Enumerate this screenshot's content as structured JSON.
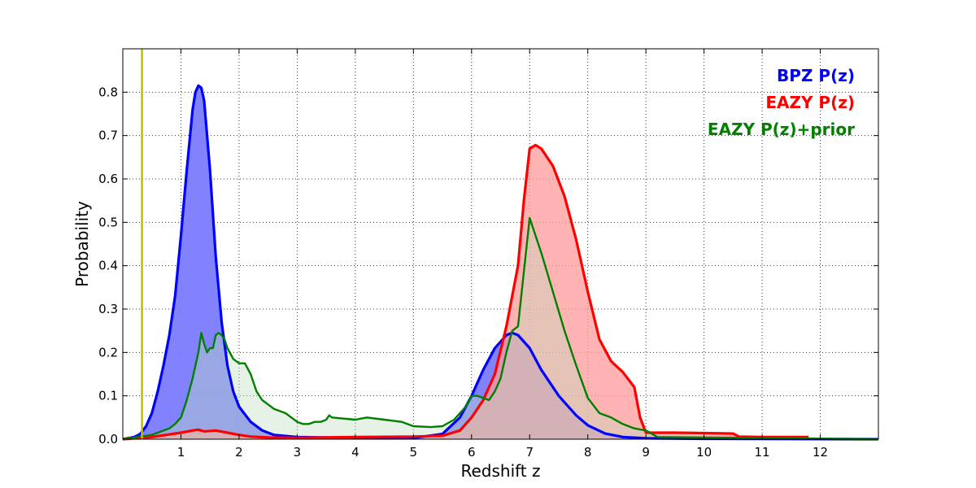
{
  "chart_data": {
    "type": "area",
    "xlabel": "Redshift z",
    "ylabel": "Probability",
    "xlim": [
      0,
      13
    ],
    "ylim": [
      0,
      0.9
    ],
    "x_ticks": [
      1,
      2,
      3,
      4,
      5,
      6,
      7,
      8,
      9,
      10,
      11,
      12
    ],
    "y_ticks": [
      0.0,
      0.1,
      0.2,
      0.3,
      0.4,
      0.5,
      0.6,
      0.7,
      0.8
    ],
    "y_tick_labels": [
      "0.0",
      "0.1",
      "0.2",
      "0.3",
      "0.4",
      "0.5",
      "0.6",
      "0.7",
      "0.8"
    ],
    "grid": true,
    "legend_position": "top-right",
    "vertical_line": {
      "x": 0.33,
      "color": "#bfbf00"
    },
    "series": [
      {
        "name": "BPZ P(z)",
        "color": "#0000ff",
        "fill": "#7b7bff",
        "x": [
          0,
          0.2,
          0.3,
          0.4,
          0.5,
          0.6,
          0.7,
          0.8,
          0.9,
          1.0,
          1.1,
          1.2,
          1.25,
          1.3,
          1.35,
          1.4,
          1.5,
          1.6,
          1.7,
          1.8,
          1.9,
          2.0,
          2.2,
          2.4,
          2.6,
          3.0,
          4.0,
          5.0,
          5.5,
          5.8,
          6.0,
          6.2,
          6.4,
          6.6,
          6.7,
          6.8,
          7.0,
          7.2,
          7.5,
          7.8,
          8.0,
          8.3,
          8.6,
          9.0,
          10.0,
          13.0
        ],
        "y": [
          0,
          0.005,
          0.012,
          0.03,
          0.06,
          0.11,
          0.17,
          0.24,
          0.33,
          0.47,
          0.62,
          0.76,
          0.8,
          0.815,
          0.81,
          0.78,
          0.62,
          0.42,
          0.27,
          0.17,
          0.11,
          0.075,
          0.04,
          0.02,
          0.01,
          0.005,
          0.003,
          0.003,
          0.012,
          0.05,
          0.1,
          0.16,
          0.21,
          0.24,
          0.245,
          0.24,
          0.21,
          0.16,
          0.1,
          0.055,
          0.032,
          0.013,
          0.005,
          0.002,
          0.001,
          0.0
        ]
      },
      {
        "name": "EAZY P(z)",
        "color": "#ff0000",
        "fill": "#ff9999",
        "x": [
          0,
          0.5,
          1.0,
          1.2,
          1.3,
          1.4,
          1.6,
          1.8,
          2.0,
          2.2,
          2.5,
          3.0,
          4.0,
          5.0,
          5.5,
          5.8,
          6.0,
          6.2,
          6.4,
          6.6,
          6.8,
          6.9,
          7.0,
          7.1,
          7.2,
          7.4,
          7.6,
          7.8,
          8.0,
          8.2,
          8.4,
          8.6,
          8.8,
          8.9,
          9.0,
          9.5,
          10.0,
          10.5,
          10.6,
          11.0,
          11.8
        ],
        "y": [
          0.0,
          0.005,
          0.015,
          0.02,
          0.022,
          0.018,
          0.02,
          0.015,
          0.01,
          0.006,
          0.004,
          0.003,
          0.005,
          0.006,
          0.008,
          0.02,
          0.05,
          0.09,
          0.15,
          0.26,
          0.4,
          0.55,
          0.67,
          0.678,
          0.67,
          0.63,
          0.56,
          0.46,
          0.34,
          0.23,
          0.18,
          0.155,
          0.12,
          0.05,
          0.015,
          0.015,
          0.014,
          0.013,
          0.006,
          0.005,
          0.005
        ]
      },
      {
        "name": "EAZY P(z)+prior",
        "color": "#007f00",
        "fill": "#bfdfbf",
        "x": [
          0,
          0.5,
          0.8,
          0.9,
          1.0,
          1.1,
          1.2,
          1.3,
          1.35,
          1.4,
          1.45,
          1.5,
          1.55,
          1.6,
          1.65,
          1.7,
          1.75,
          1.8,
          1.9,
          2.0,
          2.1,
          2.2,
          2.3,
          2.4,
          2.5,
          2.6,
          2.8,
          3.0,
          3.1,
          3.2,
          3.3,
          3.4,
          3.5,
          3.55,
          3.6,
          4.0,
          4.2,
          4.5,
          4.8,
          5.0,
          5.3,
          5.5,
          5.7,
          5.9,
          6.0,
          6.1,
          6.2,
          6.3,
          6.4,
          6.5,
          6.6,
          6.7,
          6.8,
          7.0,
          7.2,
          7.4,
          7.6,
          7.8,
          8.0,
          8.2,
          8.4,
          8.6,
          8.8,
          9.0,
          9.2,
          13.0
        ],
        "y": [
          0.0,
          0.01,
          0.025,
          0.035,
          0.05,
          0.09,
          0.14,
          0.2,
          0.245,
          0.22,
          0.2,
          0.21,
          0.21,
          0.24,
          0.245,
          0.24,
          0.23,
          0.21,
          0.185,
          0.175,
          0.175,
          0.15,
          0.11,
          0.09,
          0.08,
          0.07,
          0.06,
          0.04,
          0.035,
          0.035,
          0.04,
          0.04,
          0.045,
          0.055,
          0.05,
          0.045,
          0.05,
          0.045,
          0.04,
          0.03,
          0.028,
          0.03,
          0.045,
          0.075,
          0.1,
          0.1,
          0.095,
          0.09,
          0.11,
          0.14,
          0.2,
          0.25,
          0.26,
          0.51,
          0.43,
          0.34,
          0.25,
          0.17,
          0.095,
          0.06,
          0.05,
          0.035,
          0.025,
          0.02,
          0.005,
          0.0
        ]
      }
    ]
  }
}
